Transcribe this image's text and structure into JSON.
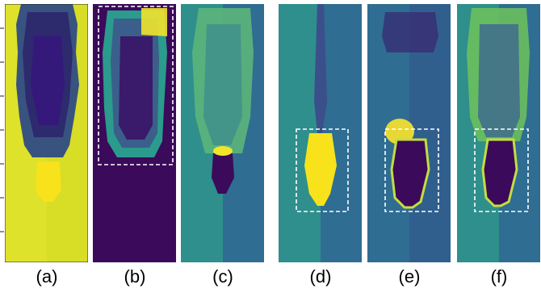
{
  "captions": [
    "(a)",
    "(b)",
    "(c)",
    "(d)",
    "(e)",
    "(f)"
  ],
  "colors": {
    "yellow": "#f2e42b",
    "dark_purple": "#3b0a5a",
    "teal": "#2f8f8c",
    "blue_teal": "#2f6d92",
    "green": "#7acb5a",
    "highlight_box": "#ffffff"
  },
  "highlight_boxes": [
    "b",
    "d",
    "e",
    "f"
  ]
}
